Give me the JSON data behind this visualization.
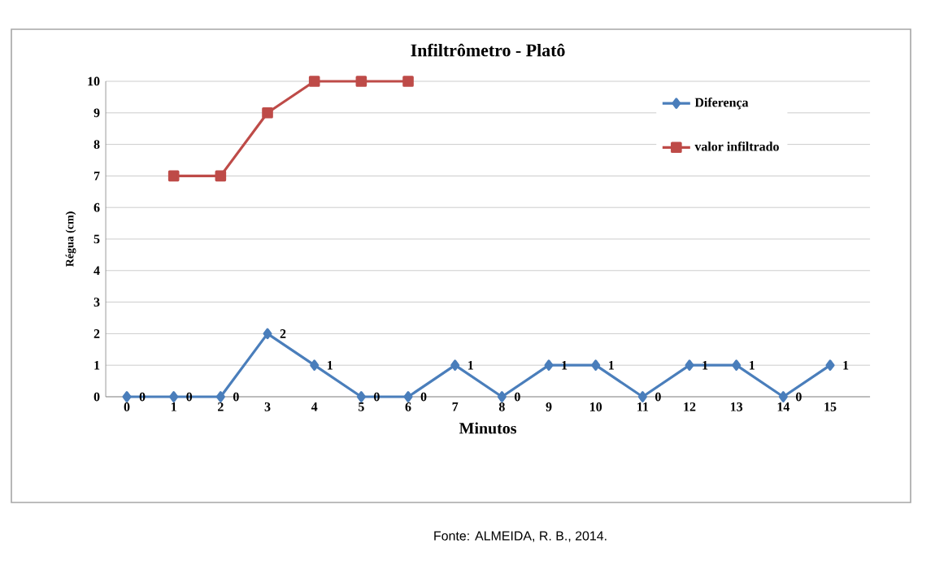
{
  "chart_data": {
    "type": "line",
    "title": "Infiltrômetro - Platô",
    "xlabel": "Minutos",
    "ylabel": "Régua (cm)",
    "categories": [
      "0",
      "1",
      "2",
      "3",
      "4",
      "5",
      "6",
      "7",
      "8",
      "9",
      "10",
      "11",
      "12",
      "13",
      "14",
      "15"
    ],
    "series": [
      {
        "name": "Diferença",
        "color": "#4a7ebb",
        "marker": "diamond",
        "values": [
          0,
          0,
          0,
          2,
          1,
          0,
          0,
          1,
          0,
          1,
          1,
          0,
          1,
          1,
          0,
          1
        ],
        "value_labels": [
          "0",
          "0",
          "0",
          "2",
          "1",
          "0",
          "0",
          "1",
          "0",
          "1",
          "1",
          "0",
          "1",
          "1",
          "0",
          "1"
        ]
      },
      {
        "name": "valor infiltrado",
        "color": "#be4b48",
        "marker": "square",
        "values": [
          null,
          7,
          7,
          9,
          10,
          10,
          10,
          null,
          null,
          null,
          null,
          null,
          null,
          null,
          null,
          null
        ]
      }
    ],
    "ylim": [
      0,
      10
    ],
    "yticks": [
      0,
      1,
      2,
      3,
      4,
      5,
      6,
      7,
      8,
      9,
      10
    ],
    "grid": "y",
    "legend": "top right",
    "annotations": [
      "Fonte: ALMEIDA, R. B., 2014."
    ]
  }
}
